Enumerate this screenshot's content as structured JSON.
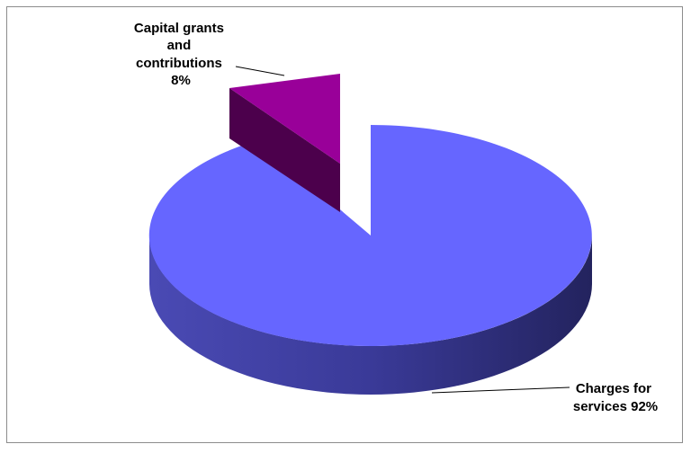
{
  "chart_data": {
    "type": "pie",
    "title": "",
    "style": "3d-exploded",
    "slices": [
      {
        "name": "Capital grants and contributions",
        "value": 8,
        "label_lines": [
          "Capital grants",
          "and",
          "contributions",
          "8%"
        ],
        "color": "#990099",
        "exploded": true
      },
      {
        "name": "Charges for services",
        "value": 92,
        "label_lines": [
          "Charges for",
          "services 92%"
        ],
        "color": "#6666ff",
        "exploded": false
      }
    ],
    "legend": "none",
    "grid": false
  }
}
